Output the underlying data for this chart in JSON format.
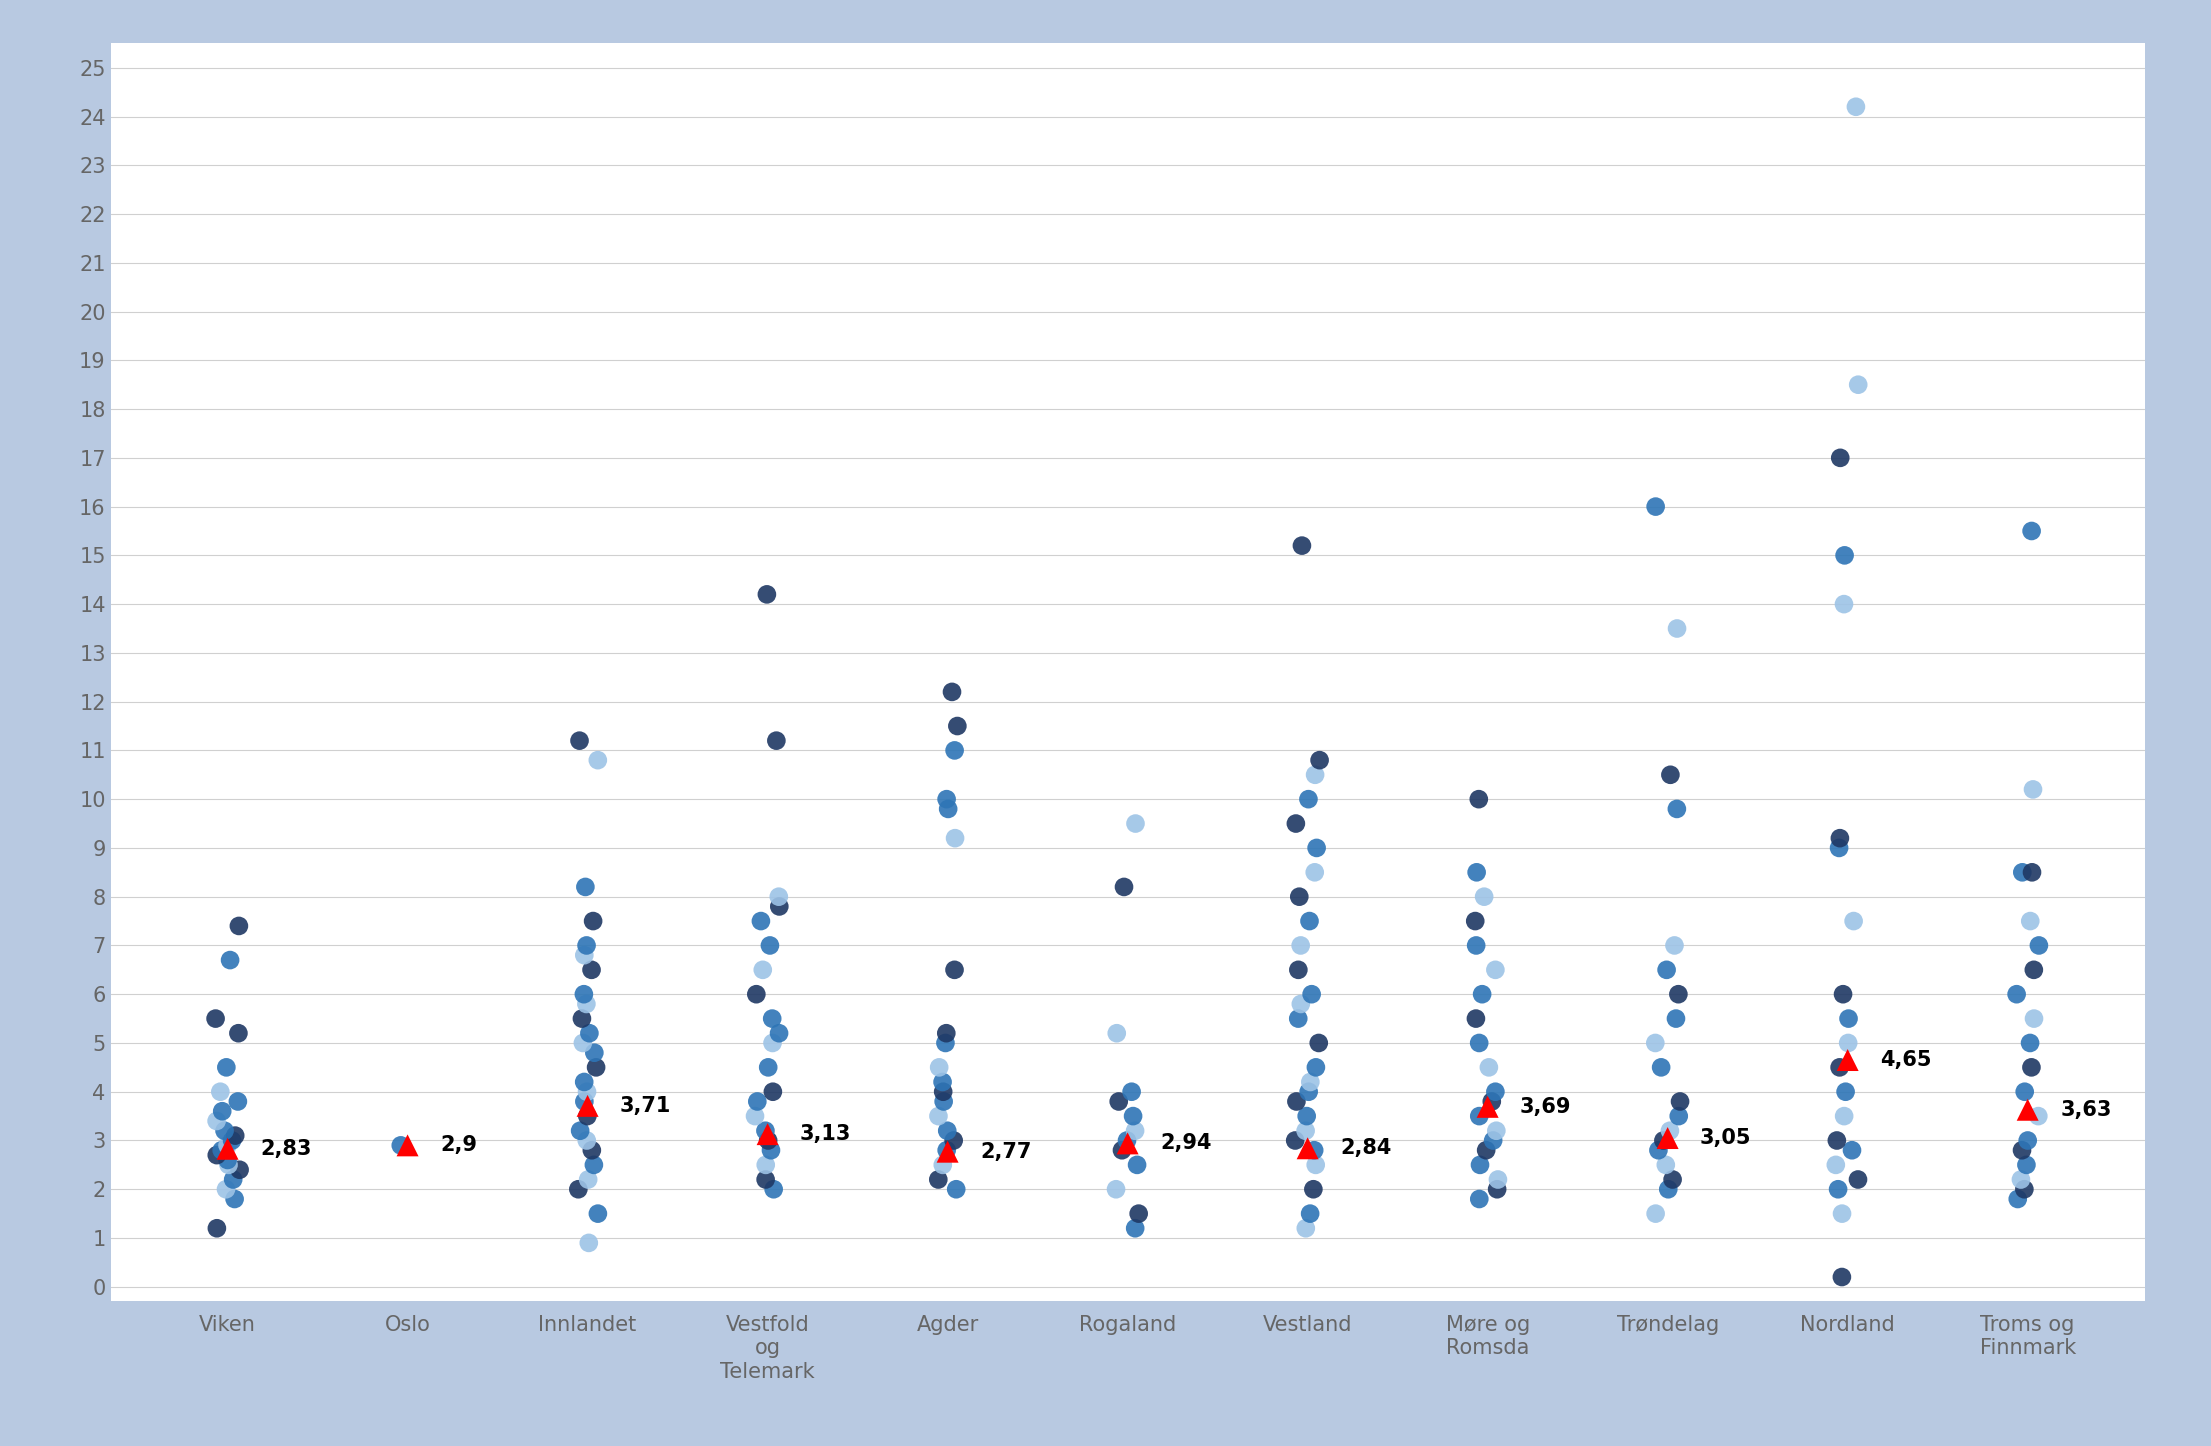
{
  "categories": [
    "Viken",
    "Oslo",
    "Innlandet",
    "Vestfold\nog\nTelemark",
    "Agder",
    "Rogaland",
    "Vestland",
    "Møre og\nRomsda",
    "Trøndelag",
    "Nordland",
    "Troms og\nFinnmark"
  ],
  "means": [
    2.83,
    2.9,
    3.71,
    3.13,
    2.77,
    2.94,
    2.84,
    3.69,
    3.05,
    4.65,
    3.63
  ],
  "mean_labels": [
    "2,83",
    "2,9",
    "3,71",
    "3,13",
    "2,77",
    "2,94",
    "2,84",
    "3,69",
    "3,05",
    "4,65",
    "3,63"
  ],
  "scatter_data": [
    [
      1.2,
      1.8,
      2.0,
      2.2,
      2.4,
      2.5,
      2.6,
      2.7,
      2.8,
      2.9,
      3.0,
      3.1,
      3.2,
      3.4,
      3.6,
      3.8,
      4.0,
      4.5,
      5.2,
      5.5,
      6.7,
      7.4
    ],
    [
      2.9
    ],
    [
      0.9,
      1.5,
      2.0,
      2.2,
      2.5,
      2.8,
      3.0,
      3.2,
      3.5,
      3.8,
      4.0,
      4.2,
      4.5,
      4.8,
      5.0,
      5.2,
      5.5,
      5.8,
      6.0,
      6.5,
      6.8,
      7.0,
      7.5,
      8.2,
      10.8,
      11.2
    ],
    [
      2.0,
      2.2,
      2.5,
      2.8,
      3.0,
      3.2,
      3.5,
      3.8,
      4.0,
      4.5,
      5.0,
      5.2,
      5.5,
      6.0,
      6.5,
      7.0,
      7.5,
      7.8,
      8.0,
      11.2,
      14.2
    ],
    [
      2.0,
      2.2,
      2.5,
      2.8,
      3.0,
      3.2,
      3.5,
      3.8,
      4.0,
      4.2,
      4.5,
      5.0,
      5.2,
      6.5,
      9.2,
      9.8,
      10.0,
      11.0,
      11.5,
      12.2
    ],
    [
      1.2,
      1.5,
      2.0,
      2.5,
      2.8,
      3.0,
      3.2,
      3.5,
      3.8,
      4.0,
      5.2,
      8.2,
      9.5
    ],
    [
      1.2,
      1.5,
      2.0,
      2.5,
      2.8,
      3.0,
      3.2,
      3.5,
      3.8,
      4.0,
      4.2,
      4.5,
      5.0,
      5.5,
      5.8,
      6.0,
      6.5,
      7.0,
      7.5,
      8.0,
      8.5,
      9.0,
      9.5,
      10.0,
      10.5,
      10.8,
      15.2
    ],
    [
      1.8,
      2.0,
      2.2,
      2.5,
      2.8,
      3.0,
      3.2,
      3.5,
      3.8,
      4.0,
      4.5,
      5.0,
      5.5,
      6.0,
      6.5,
      7.0,
      7.5,
      8.0,
      8.5,
      10.0
    ],
    [
      1.5,
      2.0,
      2.2,
      2.5,
      2.8,
      3.0,
      3.2,
      3.5,
      3.8,
      4.5,
      5.0,
      5.5,
      6.0,
      6.5,
      7.0,
      9.8,
      10.5,
      13.5,
      16.0
    ],
    [
      0.2,
      1.5,
      2.0,
      2.2,
      2.5,
      2.8,
      3.0,
      3.5,
      4.0,
      4.5,
      5.0,
      5.5,
      6.0,
      7.5,
      9.0,
      9.2,
      14.0,
      15.0,
      17.0,
      18.5,
      24.2
    ],
    [
      1.8,
      2.0,
      2.2,
      2.5,
      2.8,
      3.0,
      3.5,
      4.0,
      4.5,
      5.0,
      5.5,
      6.0,
      6.5,
      7.0,
      7.5,
      8.5,
      8.5,
      10.2,
      15.5
    ]
  ],
  "dot_colors": [
    "#1f3864",
    "#2e75b6",
    "#9dc3e6"
  ],
  "triangle_color": "#ff0000",
  "background_color": "#b8c9e1",
  "plot_bg_color": "#ffffff",
  "grid_color": "#d0d0d0",
  "tick_color": "#666666",
  "ylim": [
    0,
    25
  ],
  "yticks": [
    0,
    1,
    2,
    3,
    4,
    5,
    6,
    7,
    8,
    9,
    10,
    11,
    12,
    13,
    14,
    15,
    16,
    17,
    18,
    19,
    20,
    21,
    22,
    23,
    24,
    25
  ],
  "dot_size": 180,
  "triangle_size": 250,
  "label_fontsize": 15,
  "tick_fontsize": 15
}
